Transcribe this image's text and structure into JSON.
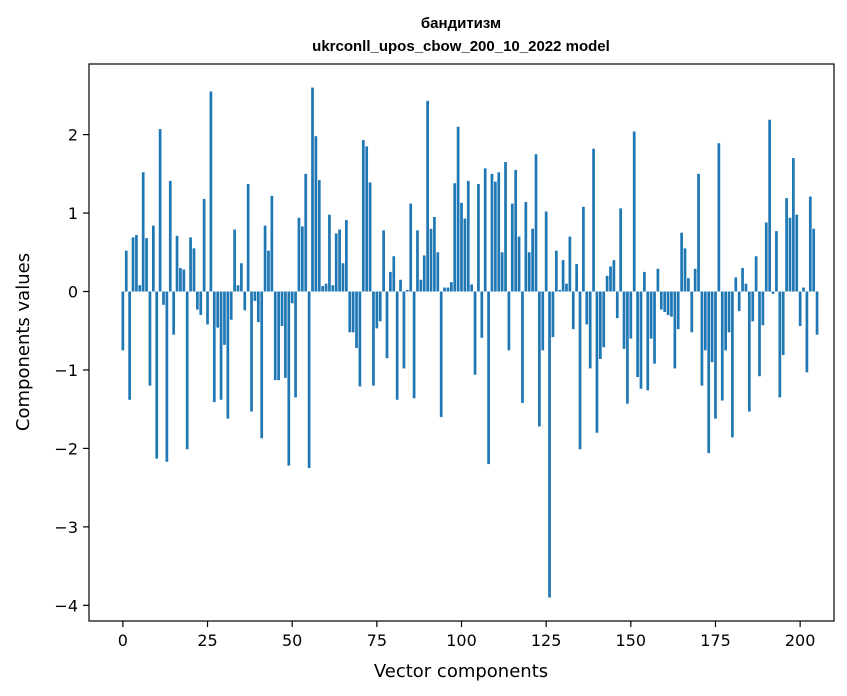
{
  "chart_data": {
    "type": "bar",
    "title": "бандитизм",
    "subtitle": "ukrconll_upos_cbow_200_10_2022 model",
    "xlabel": "Vector components",
    "ylabel": "Components values",
    "xlim": [
      -10,
      210
    ],
    "ylim": [
      -4.2,
      2.9
    ],
    "xticks": [
      0,
      25,
      50,
      75,
      100,
      125,
      150,
      175,
      200
    ],
    "yticks": [
      -4,
      -3,
      -2,
      -1,
      0,
      1,
      2
    ],
    "ytick_labels": [
      "−4",
      "−3",
      "−2",
      "−1",
      "0",
      "1",
      "2"
    ],
    "grid": false,
    "color": "#1f77b4",
    "x_start": 0,
    "values": [
      -0.75,
      0.52,
      -1.38,
      0.69,
      0.72,
      0.08,
      1.52,
      0.68,
      -1.2,
      0.84,
      -2.13,
      2.07,
      -0.17,
      -2.17,
      1.41,
      -0.55,
      0.71,
      0.3,
      0.28,
      -2.01,
      0.69,
      0.55,
      -0.23,
      -0.3,
      1.18,
      -0.42,
      2.55,
      -1.41,
      -0.46,
      -1.38,
      -0.68,
      -1.62,
      -0.36,
      0.79,
      0.08,
      0.36,
      -0.24,
      1.37,
      -1.53,
      -0.12,
      -0.39,
      -1.87,
      0.84,
      0.52,
      1.22,
      -1.13,
      -1.13,
      -0.44,
      -1.1,
      -2.22,
      -0.15,
      -1.35,
      0.94,
      0.83,
      1.5,
      -2.25,
      2.6,
      1.98,
      1.42,
      0.07,
      0.1,
      0.98,
      0.08,
      0.74,
      0.79,
      0.36,
      0.91,
      -0.52,
      -0.52,
      -0.72,
      -1.21,
      1.93,
      1.85,
      1.39,
      -1.2,
      -0.47,
      -0.38,
      0.78,
      -0.85,
      0.25,
      0.45,
      -1.38,
      0.15,
      -0.98,
      0.02,
      1.12,
      -1.36,
      0.78,
      0.15,
      0.46,
      2.43,
      0.8,
      0.95,
      0.5,
      -1.6,
      0.05,
      0.05,
      0.12,
      1.38,
      2.1,
      1.13,
      0.93,
      1.41,
      0.09,
      -1.06,
      1.37,
      -0.59,
      1.57,
      -2.2,
      1.5,
      1.4,
      1.52,
      0.5,
      1.65,
      -0.75,
      1.12,
      1.55,
      0.7,
      -1.42,
      1.14,
      0.5,
      0.8,
      1.75,
      -1.72,
      -0.75,
      1.02,
      -3.9,
      -0.58,
      0.52,
      0.02,
      0.4,
      0.1,
      0.7,
      -0.48,
      0.35,
      -2.01,
      1.08,
      -0.42,
      -0.98,
      1.82,
      -1.8,
      -0.86,
      -0.71,
      0.2,
      0.32,
      0.4,
      -0.34,
      1.06,
      -0.73,
      -1.43,
      -0.6,
      2.04,
      -1.09,
      -1.24,
      0.25,
      -1.26,
      -0.6,
      -0.92,
      0.29,
      -0.23,
      -0.26,
      -0.3,
      -0.32,
      -0.98,
      -0.48,
      0.75,
      0.55,
      0.17,
      -0.52,
      0.29,
      1.5,
      -1.2,
      -0.75,
      -2.06,
      -0.9,
      -1.62,
      1.89,
      -1.39,
      -0.75,
      -0.52,
      -1.86,
      0.18,
      -0.25,
      0.3,
      0.1,
      -1.53,
      -0.38,
      0.45,
      -1.08,
      -0.43,
      0.88,
      2.19,
      -0.03,
      0.77,
      -1.35,
      -0.81,
      1.19,
      0.94,
      1.7,
      0.98,
      -0.44,
      0.05,
      -1.03,
      1.21,
      0.8,
      -0.55
    ]
  }
}
